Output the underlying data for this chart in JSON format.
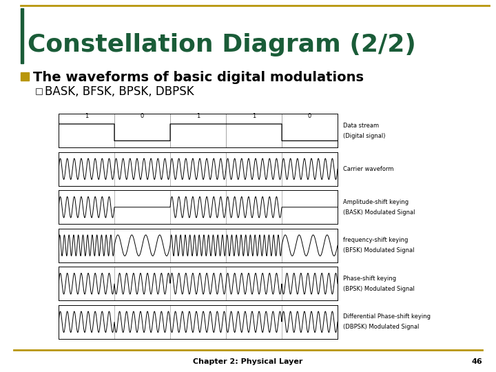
{
  "title": "Constellation Diagram (2/2)",
  "title_color": "#1a5c38",
  "title_border_color": "#b8960c",
  "background_color": "#ffffff",
  "bullet_color": "#b8960c",
  "bullet1_text": "The waveforms of basic digital modulations",
  "bullet2_text": "BASK, BFSK, BPSK, DBPSK",
  "footer_text": "Chapter 2: Physical Layer",
  "footer_page": "46",
  "footer_line_color": "#b8960c",
  "labels": [
    [
      "Data stream",
      "(Digital signal)"
    ],
    [
      "Carrier waveform",
      ""
    ],
    [
      "Amplitude-shift keying",
      "(BASK) Modulated Signal"
    ],
    [
      "frequency-shift keying",
      "(BFSK) Modulated Signal"
    ],
    [
      "Phase-shift keying",
      "(BPSK) Modulated Signal"
    ],
    [
      "Differential Phase-shift keying",
      "(DBPSK) Modulated Signal"
    ]
  ],
  "bits": [
    1,
    0,
    1,
    1,
    0
  ],
  "bit_duration": 1.0,
  "carrier_freq": 8.0,
  "carrier_freq_low": 4.0,
  "carrier_freq_high": 12.0
}
